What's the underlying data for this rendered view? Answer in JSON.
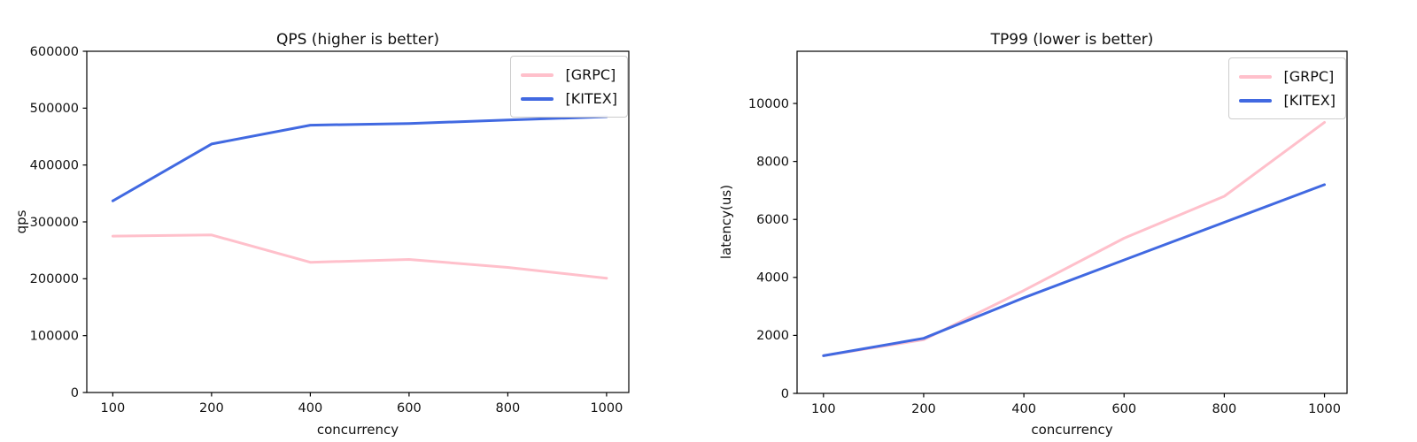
{
  "chart_data": [
    {
      "type": "line",
      "title": "QPS (higher is better)",
      "xlabel": "concurrency",
      "ylabel": "qps",
      "categories": [
        100,
        200,
        400,
        600,
        800,
        1000
      ],
      "x_tick_labels": [
        "100",
        "200",
        "400",
        "600",
        "800",
        "1000"
      ],
      "yticks": [
        0,
        100000,
        200000,
        300000,
        400000,
        500000,
        600000
      ],
      "ylim": [
        0,
        600000
      ],
      "grid": false,
      "legend_position": "upper right",
      "series": [
        {
          "name": "[GRPC]",
          "color": "#ffc0cb",
          "values": [
            275000,
            277000,
            229000,
            234000,
            220000,
            201000
          ]
        },
        {
          "name": "[KITEX]",
          "color": "#4169e1",
          "values": [
            337000,
            437000,
            470000,
            473000,
            479000,
            485000
          ]
        }
      ]
    },
    {
      "type": "line",
      "title": "TP99 (lower is better)",
      "xlabel": "concurrency",
      "ylabel": "latency(us)",
      "categories": [
        100,
        200,
        400,
        600,
        800,
        1000
      ],
      "x_tick_labels": [
        "100",
        "200",
        "400",
        "600",
        "800",
        "1000"
      ],
      "yticks": [
        0,
        2000,
        4000,
        6000,
        8000,
        10000
      ],
      "ylim": [
        0,
        11800
      ],
      "grid": false,
      "legend_position": "upper right",
      "series": [
        {
          "name": "[GRPC]",
          "color": "#ffc0cb",
          "values": [
            1300,
            1850,
            3550,
            5350,
            6800,
            9350
          ]
        },
        {
          "name": "[KITEX]",
          "color": "#4169e1",
          "values": [
            1300,
            1900,
            3300,
            4600,
            5900,
            7200
          ]
        }
      ]
    }
  ]
}
